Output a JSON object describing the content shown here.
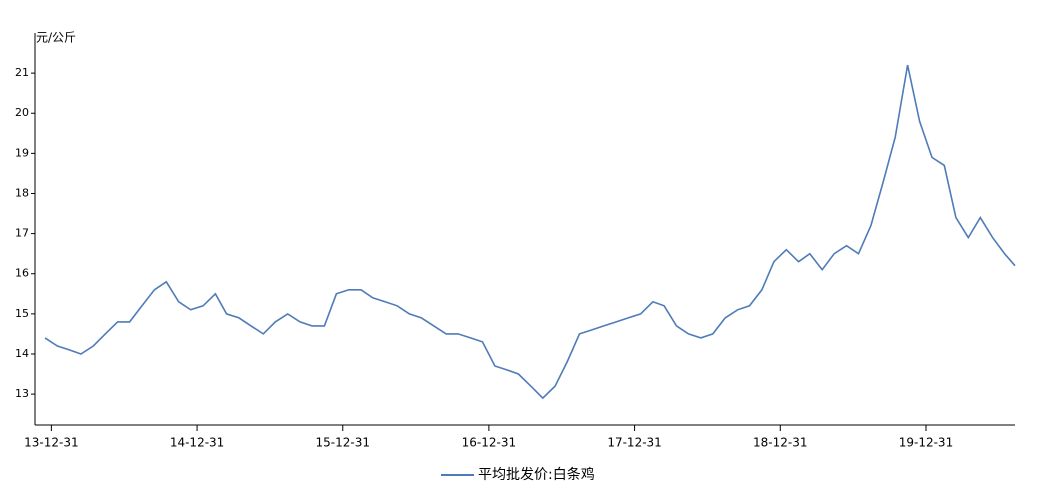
{
  "chart_data": {
    "type": "line",
    "y_label": "元/公斤",
    "x": [
      "2013-12-15",
      "2014-01-15",
      "2014-02-15",
      "2014-03-15",
      "2014-04-15",
      "2014-05-15",
      "2014-06-15",
      "2014-07-15",
      "2014-08-15",
      "2014-09-15",
      "2014-10-15",
      "2014-11-15",
      "2014-12-15",
      "2015-01-15",
      "2015-02-15",
      "2015-03-15",
      "2015-04-15",
      "2015-05-15",
      "2015-06-15",
      "2015-07-15",
      "2015-08-15",
      "2015-09-15",
      "2015-10-15",
      "2015-11-15",
      "2015-12-15",
      "2016-01-15",
      "2016-02-15",
      "2016-03-15",
      "2016-04-15",
      "2016-05-15",
      "2016-06-15",
      "2016-07-15",
      "2016-08-15",
      "2016-09-15",
      "2016-10-15",
      "2016-11-15",
      "2016-12-15",
      "2017-01-15",
      "2017-02-15",
      "2017-03-15",
      "2017-04-15",
      "2017-05-15",
      "2017-06-15",
      "2017-07-15",
      "2017-08-15",
      "2017-09-15",
      "2017-10-15",
      "2017-11-15",
      "2017-12-15",
      "2018-01-15",
      "2018-02-15",
      "2018-03-15",
      "2018-04-15",
      "2018-05-15",
      "2018-06-15",
      "2018-07-15",
      "2018-08-15",
      "2018-09-15",
      "2018-10-15",
      "2018-11-15",
      "2018-12-15",
      "2019-01-15",
      "2019-02-15",
      "2019-03-15",
      "2019-04-15",
      "2019-05-15",
      "2019-06-15",
      "2019-07-15",
      "2019-08-15",
      "2019-09-15",
      "2019-10-15",
      "2019-11-15",
      "2019-12-15",
      "2020-01-15",
      "2020-02-15",
      "2020-03-15",
      "2020-04-15",
      "2020-05-15",
      "2020-06-15",
      "2020-07-15",
      "2020-08-10"
    ],
    "series": [
      {
        "name": "平均批发价:白条鸡",
        "color": "#4f7cb8",
        "values": [
          14.4,
          14.2,
          14.1,
          14.0,
          14.2,
          14.5,
          14.8,
          14.8,
          15.2,
          15.6,
          15.8,
          15.3,
          15.1,
          15.2,
          15.5,
          15.0,
          14.9,
          14.7,
          14.5,
          14.8,
          15.0,
          14.8,
          14.7,
          14.7,
          15.5,
          15.6,
          15.6,
          15.4,
          15.3,
          15.2,
          15.0,
          14.9,
          14.7,
          14.5,
          14.5,
          14.4,
          14.3,
          13.7,
          13.6,
          13.5,
          13.2,
          12.9,
          13.2,
          13.8,
          14.5,
          14.6,
          14.7,
          14.8,
          14.9,
          15.0,
          15.3,
          15.2,
          14.7,
          14.5,
          14.4,
          14.5,
          14.9,
          15.1,
          15.2,
          15.6,
          16.3,
          16.6,
          16.3,
          16.5,
          16.1,
          16.5,
          16.7,
          16.5,
          17.2,
          18.3,
          19.4,
          21.2,
          19.8,
          18.9,
          18.7,
          17.4,
          16.9,
          17.4,
          16.9,
          16.5,
          16.2
        ]
      }
    ],
    "xlim": [
      "2013-11-20",
      "2020-08-10"
    ],
    "xticks": [
      {
        "value": "2013-12-31",
        "label": "13-12-31"
      },
      {
        "value": "2014-12-31",
        "label": "14-12-31"
      },
      {
        "value": "2015-12-31",
        "label": "15-12-31"
      },
      {
        "value": "2016-12-31",
        "label": "16-12-31"
      },
      {
        "value": "2017-12-31",
        "label": "17-12-31"
      },
      {
        "value": "2018-12-31",
        "label": "18-12-31"
      },
      {
        "value": "2019-12-31",
        "label": "19-12-31"
      }
    ],
    "ylim": [
      12.23,
      22.0
    ],
    "yticks": [
      13,
      14,
      15,
      16,
      17,
      18,
      19,
      20,
      21
    ],
    "grid": false
  }
}
